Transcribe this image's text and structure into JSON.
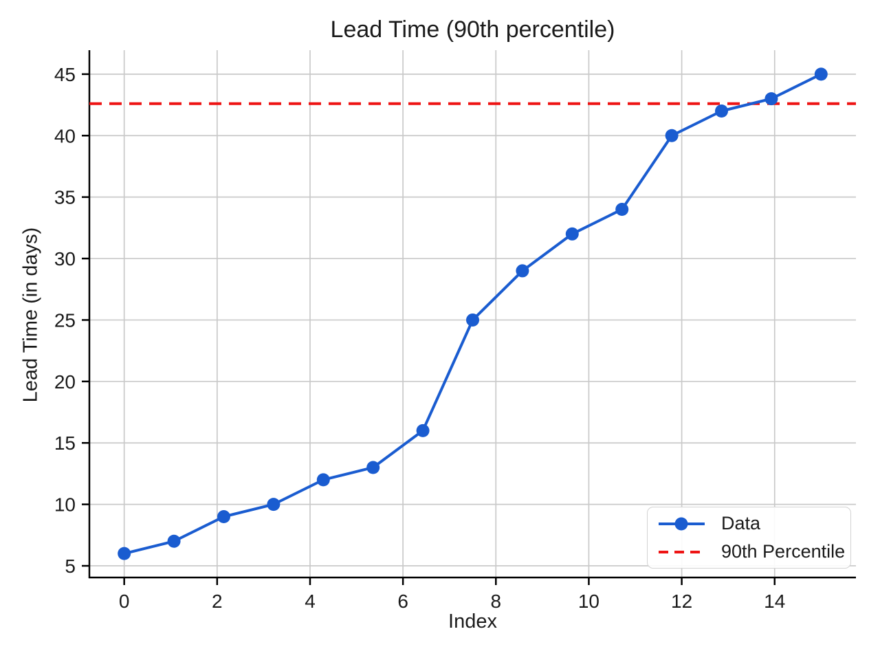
{
  "chart_data": {
    "type": "line",
    "title": "Lead Time (90th percentile)",
    "xlabel": "Index",
    "ylabel": "Lead Time (in days)",
    "x": [
      0,
      1.0714,
      2.1429,
      3.2143,
      4.2857,
      5.3571,
      6.4286,
      7.5,
      8.5714,
      9.6429,
      10.7143,
      11.7857,
      12.8571,
      13.9286,
      15
    ],
    "series": [
      {
        "name": "Data",
        "values": [
          6,
          7,
          9,
          10,
          12,
          13,
          16,
          25,
          29,
          32,
          34,
          40,
          42,
          43,
          45
        ],
        "color": "#1a5cd0",
        "marker": "circle"
      }
    ],
    "reference_lines": [
      {
        "name": "90th Percentile",
        "value": 42.6,
        "color": "#ee1414",
        "style": "dashed"
      }
    ],
    "xticks": [
      0,
      2,
      4,
      6,
      8,
      10,
      12,
      14
    ],
    "yticks": [
      5,
      10,
      15,
      20,
      25,
      30,
      35,
      40,
      45
    ],
    "xlim": [
      -0.75,
      15.75
    ],
    "ylim": [
      4.05,
      46.95
    ],
    "grid": true,
    "legend": {
      "position": "lower right",
      "entries": [
        "Data",
        "90th Percentile"
      ]
    }
  },
  "colors": {
    "data_line": "#1a5cd0",
    "percentile_line": "#ee1414",
    "gridline": "#c9c9c9",
    "spine": "#000000",
    "text": "#1a1a1a",
    "background": "#ffffff"
  }
}
